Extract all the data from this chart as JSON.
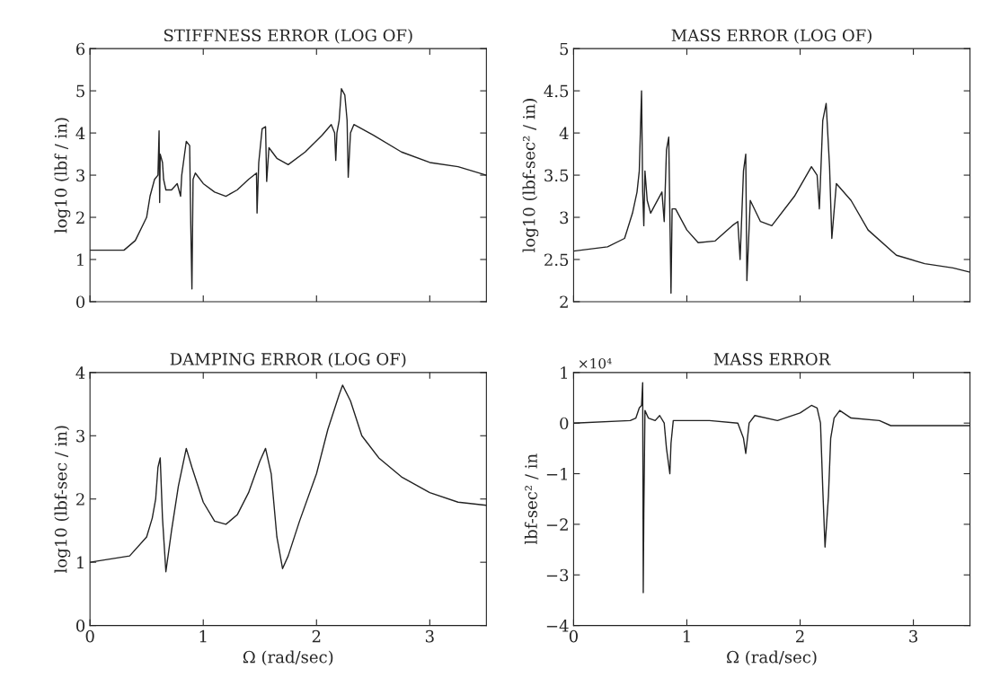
{
  "chart_data": [
    {
      "type": "line",
      "title": "STIFFNESS ERROR (LOG OF)",
      "ylabel": "log10 (lbf / in)",
      "color": "#222222",
      "xlim": [
        0,
        3.5
      ],
      "ylim": [
        0,
        6
      ],
      "xticks": [
        0,
        1,
        2,
        3
      ],
      "yticks": [
        0,
        1,
        2,
        3,
        4,
        5,
        6
      ],
      "tick_labels": "y",
      "grid": false,
      "x": [
        0,
        0.3,
        0.4,
        0.5,
        0.53,
        0.57,
        0.6,
        0.61,
        0.615,
        0.62,
        0.64,
        0.65,
        0.67,
        0.72,
        0.77,
        0.8,
        0.81,
        0.85,
        0.88,
        0.89,
        0.9,
        0.91,
        0.93,
        1.0,
        1.1,
        1.2,
        1.3,
        1.4,
        1.47,
        1.475,
        1.49,
        1.52,
        1.55,
        1.56,
        1.58,
        1.65,
        1.75,
        1.9,
        2.05,
        2.13,
        2.16,
        2.17,
        2.18,
        2.2,
        2.22,
        2.25,
        2.27,
        2.28,
        2.3,
        2.33,
        2.5,
        2.75,
        3.0,
        3.25,
        3.5
      ],
      "values": [
        1.22,
        1.22,
        1.45,
        2.0,
        2.5,
        2.9,
        3.0,
        4.05,
        2.35,
        3.5,
        3.3,
        2.9,
        2.65,
        2.65,
        2.8,
        2.5,
        3.0,
        3.8,
        3.7,
        1.8,
        0.3,
        2.9,
        3.05,
        2.8,
        2.6,
        2.5,
        2.65,
        2.9,
        3.05,
        2.1,
        3.3,
        4.1,
        4.15,
        2.85,
        3.65,
        3.4,
        3.25,
        3.55,
        3.95,
        4.2,
        4.0,
        3.35,
        4.0,
        4.3,
        5.05,
        4.9,
        4.3,
        2.95,
        4.0,
        4.2,
        3.95,
        3.55,
        3.3,
        3.2,
        3.0
      ]
    },
    {
      "type": "line",
      "title": "MASS ERROR (LOG OF)",
      "ylabel": "log10 (lbf-sec² / in)",
      "color": "#222222",
      "xlim": [
        0,
        3.5
      ],
      "ylim": [
        2,
        5
      ],
      "xticks": [
        0,
        1,
        2,
        3
      ],
      "yticks": [
        2,
        2.5,
        3,
        3.5,
        4,
        4.5,
        5
      ],
      "tick_labels": "y",
      "grid": false,
      "x": [
        0,
        0.3,
        0.45,
        0.52,
        0.56,
        0.58,
        0.6,
        0.61,
        0.62,
        0.63,
        0.65,
        0.68,
        0.72,
        0.78,
        0.8,
        0.82,
        0.84,
        0.86,
        0.87,
        0.9,
        1.0,
        1.1,
        1.25,
        1.4,
        1.45,
        1.47,
        1.5,
        1.52,
        1.53,
        1.56,
        1.65,
        1.75,
        1.95,
        2.1,
        2.15,
        2.17,
        2.2,
        2.23,
        2.26,
        2.28,
        2.32,
        2.45,
        2.6,
        2.85,
        3.1,
        3.35,
        3.5
      ],
      "values": [
        2.6,
        2.65,
        2.75,
        3.05,
        3.3,
        3.55,
        4.5,
        3.3,
        2.9,
        3.55,
        3.2,
        3.05,
        3.15,
        3.3,
        2.95,
        3.8,
        3.95,
        2.1,
        3.1,
        3.1,
        2.85,
        2.7,
        2.72,
        2.9,
        2.95,
        2.5,
        3.55,
        3.75,
        2.25,
        3.2,
        2.95,
        2.9,
        3.25,
        3.6,
        3.5,
        3.1,
        4.15,
        4.35,
        3.6,
        2.75,
        3.4,
        3.2,
        2.85,
        2.55,
        2.45,
        2.4,
        2.35
      ]
    },
    {
      "type": "line",
      "title": "DAMPING ERROR (LOG OF)",
      "xlabel": "Ω (rad/sec)",
      "ylabel": "log10 (lbf-sec / in)",
      "color": "#222222",
      "xlim": [
        0,
        3.5
      ],
      "ylim": [
        0,
        4
      ],
      "xticks": [
        0,
        1,
        2,
        3
      ],
      "yticks": [
        0,
        1,
        2,
        3,
        4
      ],
      "grid": false,
      "x": [
        0,
        0.35,
        0.5,
        0.55,
        0.58,
        0.6,
        0.62,
        0.64,
        0.67,
        0.72,
        0.78,
        0.85,
        0.9,
        1.0,
        1.1,
        1.2,
        1.3,
        1.4,
        1.5,
        1.55,
        1.6,
        1.65,
        1.7,
        1.75,
        1.85,
        2.0,
        2.1,
        2.2,
        2.23,
        2.3,
        2.4,
        2.55,
        2.75,
        3.0,
        3.25,
        3.5
      ],
      "values": [
        1.0,
        1.1,
        1.4,
        1.7,
        2.0,
        2.5,
        2.65,
        1.7,
        0.85,
        1.5,
        2.2,
        2.8,
        2.5,
        1.95,
        1.65,
        1.6,
        1.75,
        2.1,
        2.6,
        2.8,
        2.4,
        1.4,
        0.9,
        1.1,
        1.65,
        2.4,
        3.1,
        3.65,
        3.8,
        3.55,
        3.0,
        2.65,
        2.35,
        2.1,
        1.95,
        1.9
      ]
    },
    {
      "type": "line",
      "title": "MASS ERROR",
      "xlabel": "Ω (rad/sec)",
      "ylabel": "lbf-sec² / in",
      "annotations": [
        "×10⁴"
      ],
      "color": "#222222",
      "xlim": [
        0,
        3.5
      ],
      "ylim": [
        -4,
        1
      ],
      "xticks": [
        0,
        1,
        2,
        3
      ],
      "yticks": [
        {
          "value": -4,
          "label": "−4"
        },
        {
          "value": -3,
          "label": "−3"
        },
        {
          "value": -2,
          "label": "−2"
        },
        {
          "value": -1,
          "label": "−1"
        },
        0,
        1
      ],
      "grid": false,
      "x": [
        0,
        0.5,
        0.55,
        0.58,
        0.6,
        0.61,
        0.615,
        0.62,
        0.63,
        0.66,
        0.72,
        0.76,
        0.8,
        0.82,
        0.85,
        0.86,
        0.88,
        1.0,
        1.2,
        1.45,
        1.5,
        1.52,
        1.55,
        1.6,
        1.8,
        2.0,
        2.1,
        2.15,
        2.18,
        2.2,
        2.22,
        2.25,
        2.27,
        2.3,
        2.35,
        2.45,
        2.7,
        2.8,
        3.5
      ],
      "values": [
        0.0,
        0.05,
        0.1,
        0.3,
        0.35,
        0.8,
        -3.35,
        -1.8,
        0.25,
        0.1,
        0.05,
        0.15,
        0.0,
        -0.5,
        -1.0,
        -0.4,
        0.05,
        0.05,
        0.05,
        0.0,
        -0.3,
        -0.6,
        0.0,
        0.15,
        0.05,
        0.2,
        0.35,
        0.3,
        0.0,
        -1.3,
        -2.45,
        -1.45,
        -0.3,
        0.1,
        0.25,
        0.1,
        0.05,
        -0.05,
        -0.05
      ]
    }
  ]
}
